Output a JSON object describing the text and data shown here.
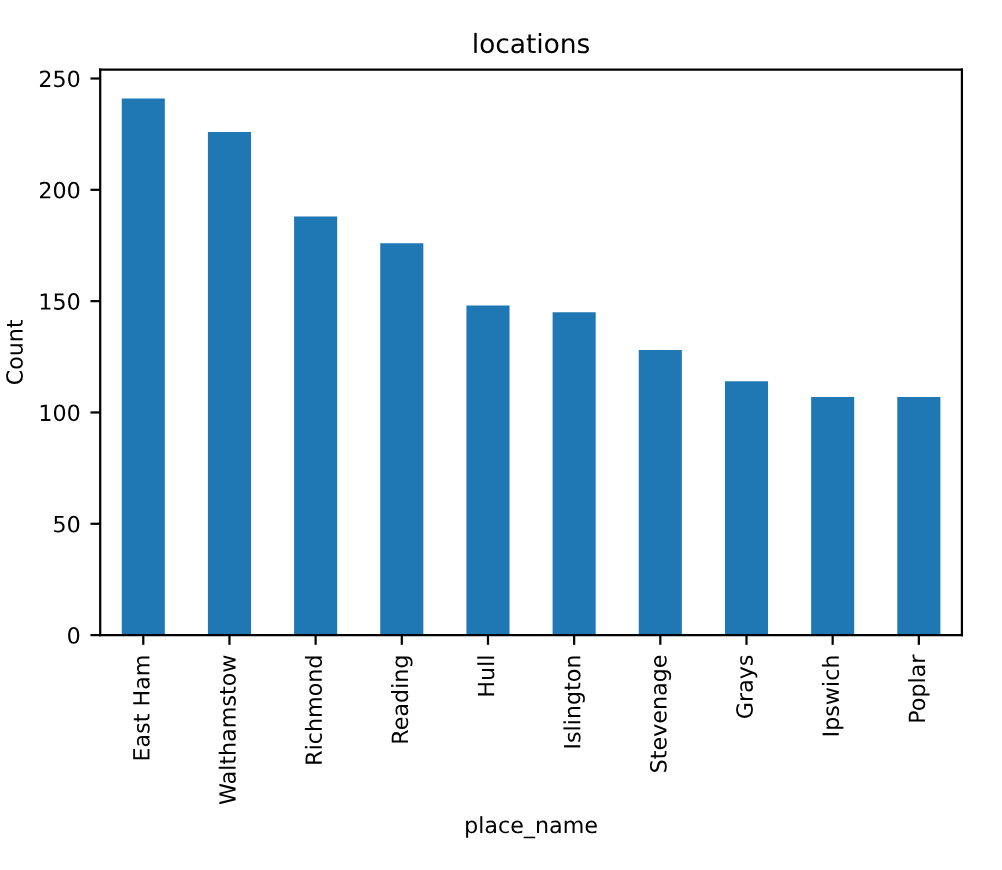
{
  "chart_data": {
    "type": "bar",
    "title": "locations",
    "xlabel": "place_name",
    "ylabel": "Count",
    "categories": [
      "East Ham",
      "Walthamstow",
      "Richmond",
      "Reading",
      "Hull",
      "Islington",
      "Stevenage",
      "Grays",
      "Ipswich",
      "Poplar"
    ],
    "values": [
      241,
      226,
      188,
      176,
      148,
      145,
      128,
      114,
      107,
      107
    ],
    "color": "#1f77b4",
    "ylim": [
      0,
      254
    ],
    "yticks": [
      0,
      50,
      100,
      150,
      200,
      250
    ],
    "grid": false
  }
}
